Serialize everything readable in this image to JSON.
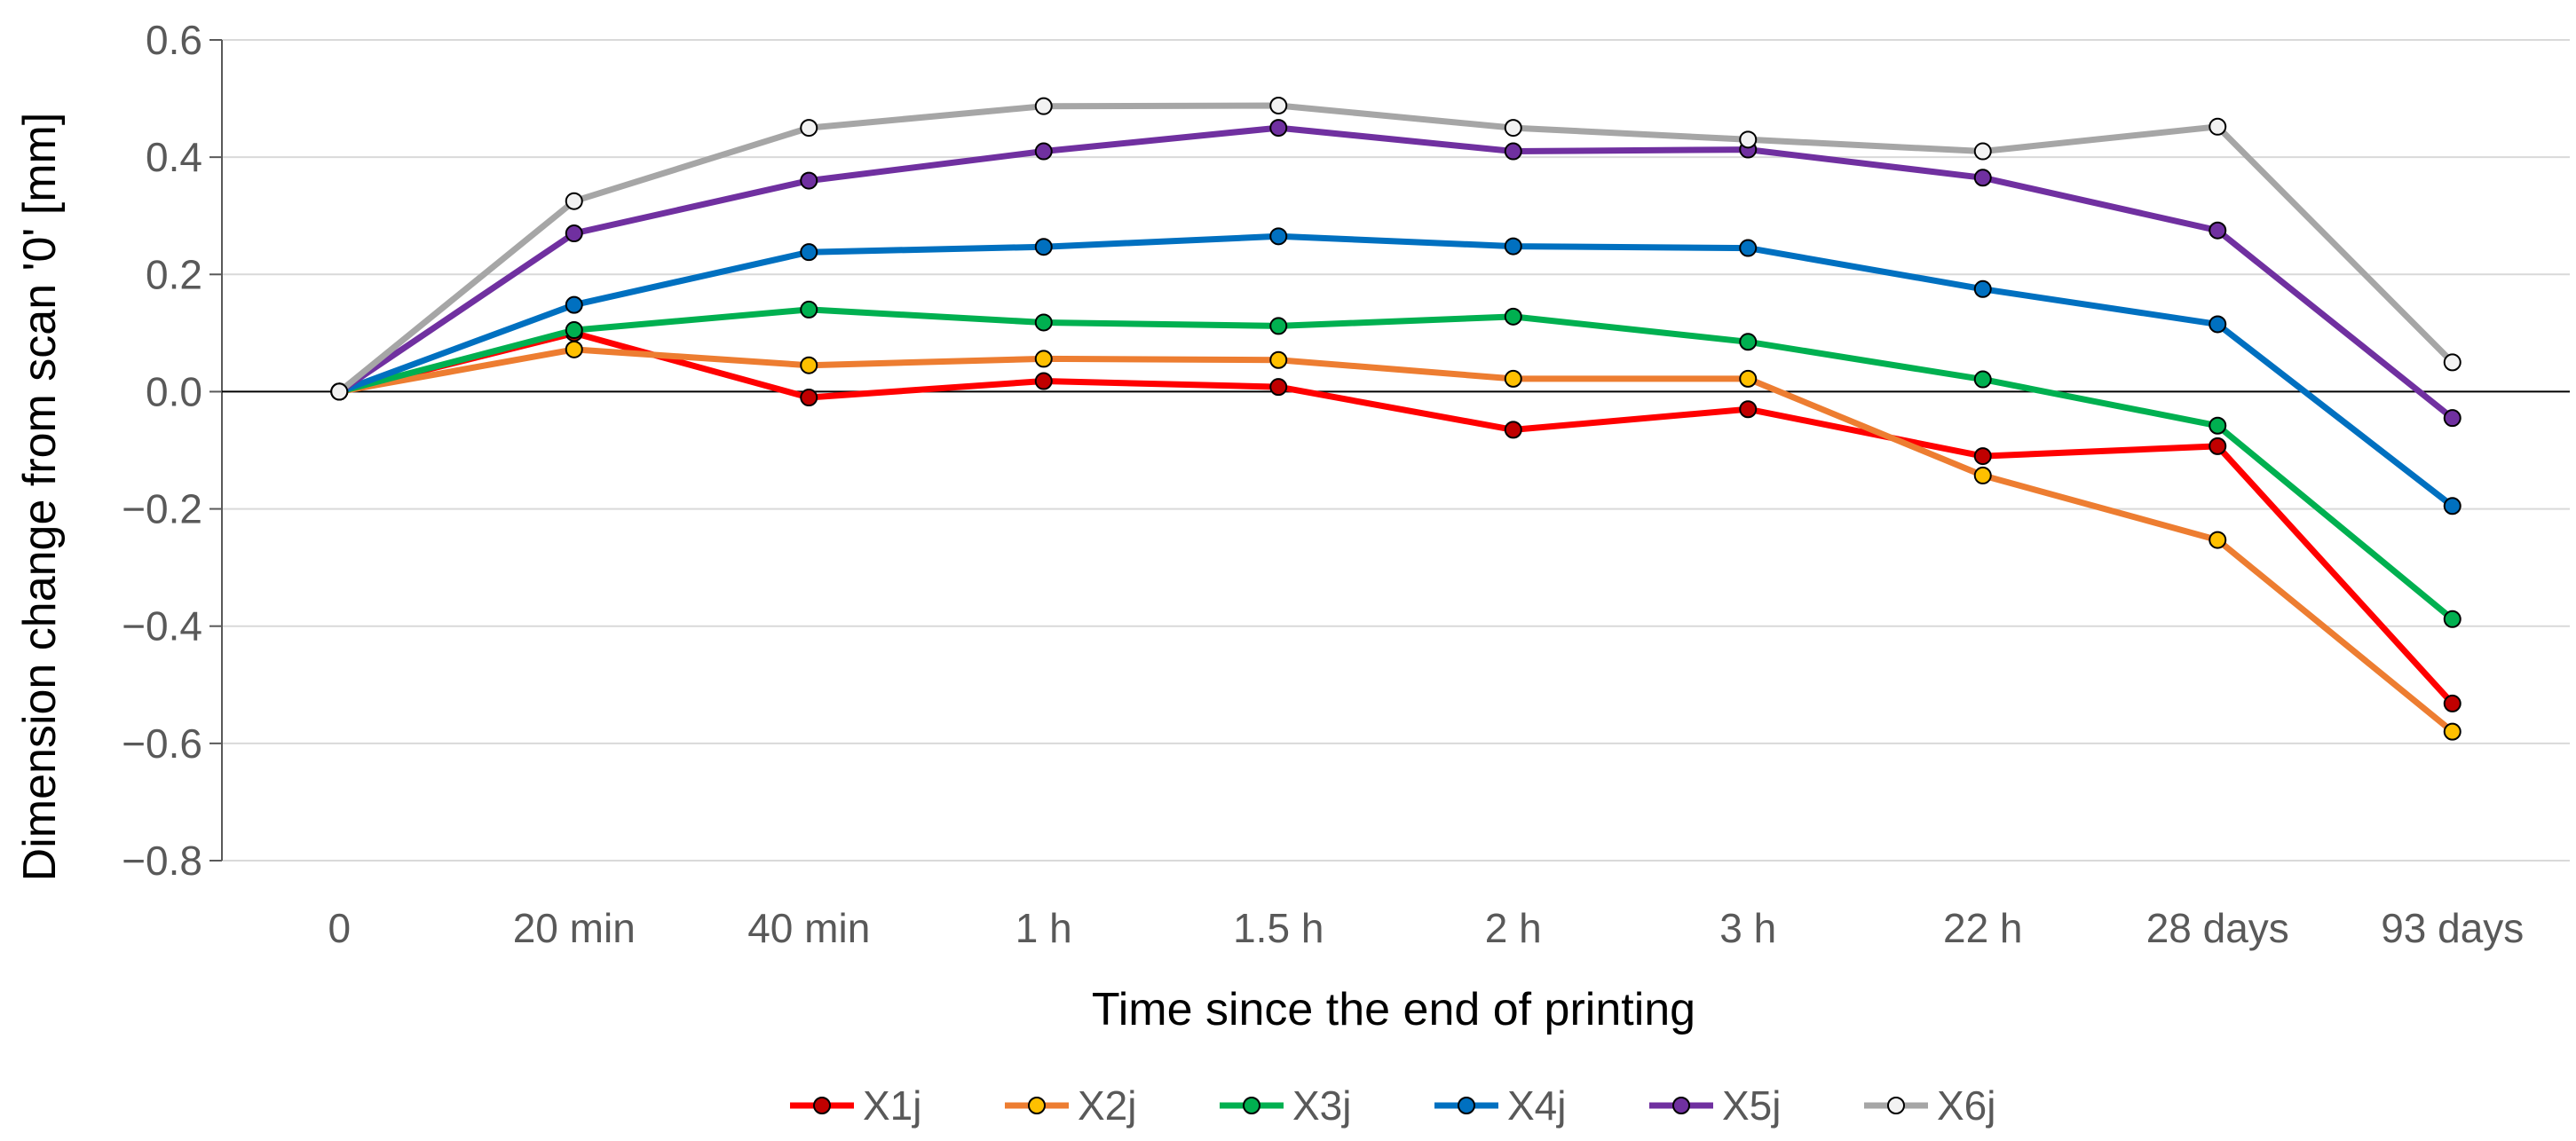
{
  "chart_data": {
    "type": "line",
    "title": "",
    "xlabel": "Time since the end of printing",
    "ylabel": "Dimension change from scan '0' [mm]",
    "categories": [
      "0",
      "20 min",
      "40 min",
      "1 h",
      "1.5 h",
      "2 h",
      "3 h",
      "22 h",
      "28 days",
      "93 days"
    ],
    "ylim": [
      -0.8,
      0.6
    ],
    "yticks": [
      0.6,
      0.4,
      0.2,
      0.0,
      -0.2,
      -0.4,
      -0.6,
      -0.8
    ],
    "ytick_labels": [
      "0.6",
      "0.4",
      "0.2",
      "0.0",
      "−0.2",
      "−0.4",
      "−0.6",
      "−0.8"
    ],
    "grid": true,
    "legend_position": "bottom",
    "series": [
      {
        "name": "X1j",
        "color": "#ff0000",
        "marker_fill": "#c00000",
        "values": [
          0.0,
          0.1,
          -0.01,
          0.018,
          0.008,
          -0.065,
          -0.03,
          -0.11,
          -0.093,
          -0.532
        ]
      },
      {
        "name": "X2j",
        "color": "#ed7d31",
        "marker_fill": "#ffc000",
        "values": [
          0.0,
          0.072,
          0.045,
          0.056,
          0.054,
          0.022,
          0.022,
          -0.143,
          -0.253,
          -0.58
        ]
      },
      {
        "name": "X3j",
        "color": "#00b050",
        "marker_fill": "#00b050",
        "values": [
          0.0,
          0.105,
          0.14,
          0.118,
          0.112,
          0.128,
          0.085,
          0.021,
          -0.058,
          -0.388
        ]
      },
      {
        "name": "X4j",
        "color": "#0070c0",
        "marker_fill": "#0070c0",
        "values": [
          0.0,
          0.148,
          0.238,
          0.247,
          0.265,
          0.248,
          0.245,
          0.175,
          0.115,
          -0.195
        ]
      },
      {
        "name": "X5j",
        "color": "#7030a0",
        "marker_fill": "#7030a0",
        "values": [
          0.0,
          0.27,
          0.36,
          0.41,
          0.45,
          0.41,
          0.413,
          0.365,
          0.275,
          -0.045
        ]
      },
      {
        "name": "X6j",
        "color": "#a6a6a6",
        "marker_fill": "#f2f2f2",
        "values": [
          0.0,
          0.325,
          0.45,
          0.487,
          0.488,
          0.45,
          0.43,
          0.41,
          0.452,
          0.05
        ]
      }
    ]
  }
}
